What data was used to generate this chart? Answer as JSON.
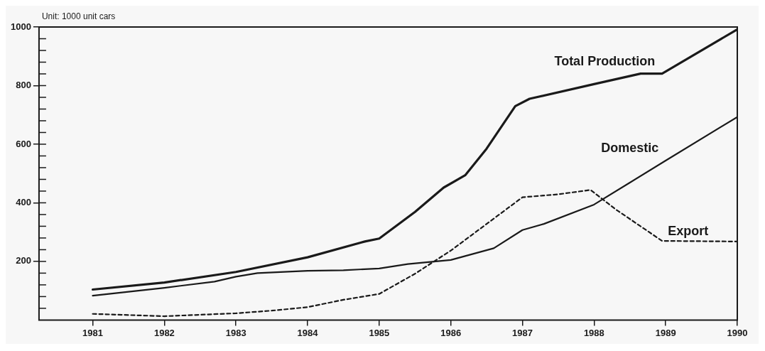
{
  "chart_data": {
    "type": "line",
    "ylabel": "Unit: 1000 unit cars",
    "xlim": [
      1980.25,
      1990
    ],
    "xticks": [
      1981,
      1982,
      1983,
      1984,
      1985,
      1986,
      1987,
      1988,
      1989,
      1990
    ],
    "ylim": [
      0,
      1000
    ],
    "yticks": [
      {
        "value": 40,
        "label": null
      },
      {
        "value": 80,
        "label": null
      },
      {
        "value": 120,
        "label": null
      },
      {
        "value": 160,
        "label": null
      },
      200,
      {
        "value": 240,
        "label": null
      },
      {
        "value": 280,
        "label": null
      },
      {
        "value": 320,
        "label": null
      },
      {
        "value": 360,
        "label": null
      },
      400,
      {
        "value": 440,
        "label": null
      },
      {
        "value": 480,
        "label": null
      },
      {
        "value": 520,
        "label": null
      },
      {
        "value": 560,
        "label": null
      },
      600,
      {
        "value": 640,
        "label": null
      },
      {
        "value": 680,
        "label": null
      },
      {
        "value": 720,
        "label": null
      },
      {
        "value": 760,
        "label": null
      },
      800,
      {
        "value": 840,
        "label": null
      },
      {
        "value": 880,
        "label": null
      },
      {
        "value": 920,
        "label": null
      },
      {
        "value": 960,
        "label": null
      },
      1000
    ],
    "grid": false,
    "legend": false,
    "marker": "none",
    "series": [
      {
        "name": "Total Production",
        "color": "#1a1a1a",
        "line_style": "solid",
        "x": [
          1981,
          1982,
          1983,
          1984,
          1984.8,
          1985,
          1985.5,
          1985.9,
          1986.2,
          1986.5,
          1986.9,
          1987.1,
          1988,
          1988.65,
          1988.95,
          1990
        ],
        "values": [
          104,
          128,
          164,
          214,
          268,
          278,
          369,
          452,
          494,
          585,
          730,
          755,
          805,
          841,
          841,
          992
        ]
      },
      {
        "name": "Domestic",
        "color": "#1a1a1a",
        "line_style": "solid",
        "x": [
          1981,
          1982,
          1982.7,
          1983,
          1983.3,
          1984,
          1984.5,
          1985,
          1985.4,
          1986,
          1986.6,
          1987,
          1987.3,
          1988,
          1988.5,
          1989,
          1990
        ],
        "values": [
          83,
          110,
          131,
          148,
          160,
          168,
          170,
          176,
          191,
          205,
          245,
          307,
          328,
          394,
          469,
          544,
          693
        ]
      },
      {
        "name": "Export",
        "color": "#1a1a1a",
        "line_style": "dashed",
        "x": [
          1981,
          1982,
          1983,
          1983.5,
          1984,
          1984.5,
          1985,
          1985.5,
          1986,
          1986.5,
          1987,
          1987.5,
          1987.95,
          1988.3,
          1988.95,
          1990
        ],
        "values": [
          21,
          13,
          23,
          32,
          44,
          69,
          89,
          158,
          237,
          328,
          419,
          429,
          444,
          378,
          270,
          268
        ]
      }
    ]
  }
}
